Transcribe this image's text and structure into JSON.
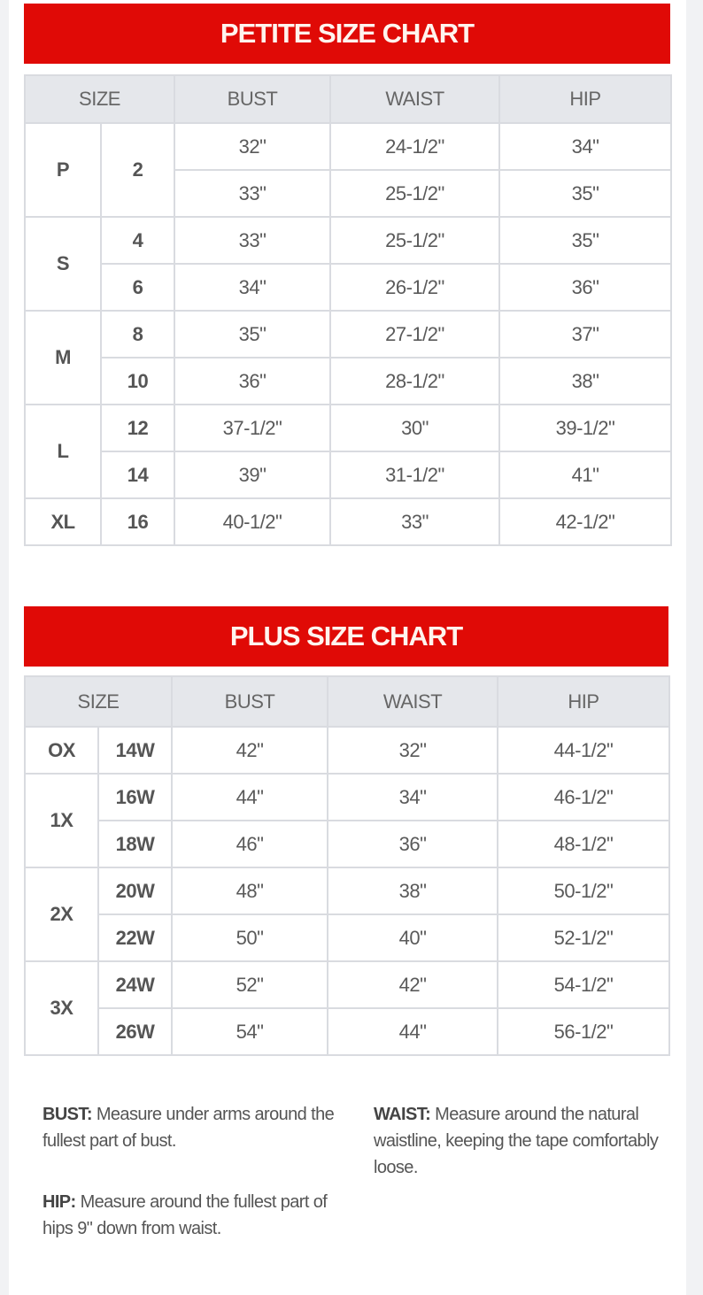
{
  "colors": {
    "banner": "#e00a06",
    "header_bg": "#e5e7eb",
    "border": "#d9dbe0",
    "text": "#5a5a5a"
  },
  "petite": {
    "title": "PETITE SIZE CHART",
    "headers": [
      "SIZE",
      "BUST",
      "WAIST",
      "HIP"
    ],
    "groups": [
      {
        "label": "P",
        "rows": [
          {
            "size": "2",
            "bust": "32\"",
            "waist": "24-1/2\"",
            "hip": "34\""
          },
          {
            "size": "",
            "bust": "33\"",
            "waist": "25-1/2\"",
            "hip": "35\""
          }
        ],
        "merge_size": true
      },
      {
        "label": "S",
        "rows": [
          {
            "size": "4",
            "bust": "33\"",
            "waist": "25-1/2\"",
            "hip": "35\""
          },
          {
            "size": "6",
            "bust": "34\"",
            "waist": "26-1/2\"",
            "hip": "36\""
          }
        ]
      },
      {
        "label": "M",
        "rows": [
          {
            "size": "8",
            "bust": "35\"",
            "waist": "27-1/2\"",
            "hip": "37\""
          },
          {
            "size": "10",
            "bust": "36\"",
            "waist": "28-1/2\"",
            "hip": "38\""
          }
        ]
      },
      {
        "label": "L",
        "rows": [
          {
            "size": "12",
            "bust": "37-1/2\"",
            "waist": "30\"",
            "hip": "39-1/2\""
          },
          {
            "size": "14",
            "bust": "39\"",
            "waist": "31-1/2\"",
            "hip": "41\""
          }
        ]
      },
      {
        "label": "XL",
        "rows": [
          {
            "size": "16",
            "bust": "40-1/2\"",
            "waist": "33\"",
            "hip": "42-1/2\""
          }
        ]
      }
    ]
  },
  "plus": {
    "title": "PLUS SIZE CHART",
    "headers": [
      "SIZE",
      "BUST",
      "WAIST",
      "HIP"
    ],
    "groups": [
      {
        "label": "OX",
        "rows": [
          {
            "size": "14W",
            "bust": "42\"",
            "waist": "32\"",
            "hip": "44-1/2\""
          }
        ]
      },
      {
        "label": "1X",
        "rows": [
          {
            "size": "16W",
            "bust": "44\"",
            "waist": "34\"",
            "hip": "46-1/2\""
          },
          {
            "size": "18W",
            "bust": "46\"",
            "waist": "36\"",
            "hip": "48-1/2\""
          }
        ]
      },
      {
        "label": "2X",
        "rows": [
          {
            "size": "20W",
            "bust": "48\"",
            "waist": "38\"",
            "hip": "50-1/2\""
          },
          {
            "size": "22W",
            "bust": "50\"",
            "waist": "40\"",
            "hip": "52-1/2\""
          }
        ]
      },
      {
        "label": "3X",
        "rows": [
          {
            "size": "24W",
            "bust": "52\"",
            "waist": "42\"",
            "hip": "54-1/2\""
          },
          {
            "size": "26W",
            "bust": "54\"",
            "waist": "44\"",
            "hip": "56-1/2\""
          }
        ]
      }
    ]
  },
  "notes": {
    "bust": {
      "label": "BUST:",
      "text": " Measure under arms around the fullest part of bust."
    },
    "waist": {
      "label": "WAIST:",
      "text": " Measure around the natural waistline, keeping the tape comfortably loose."
    },
    "hip": {
      "label": "HIP:",
      "text": " Measure around the fullest part of hips 9\" down from waist."
    }
  }
}
